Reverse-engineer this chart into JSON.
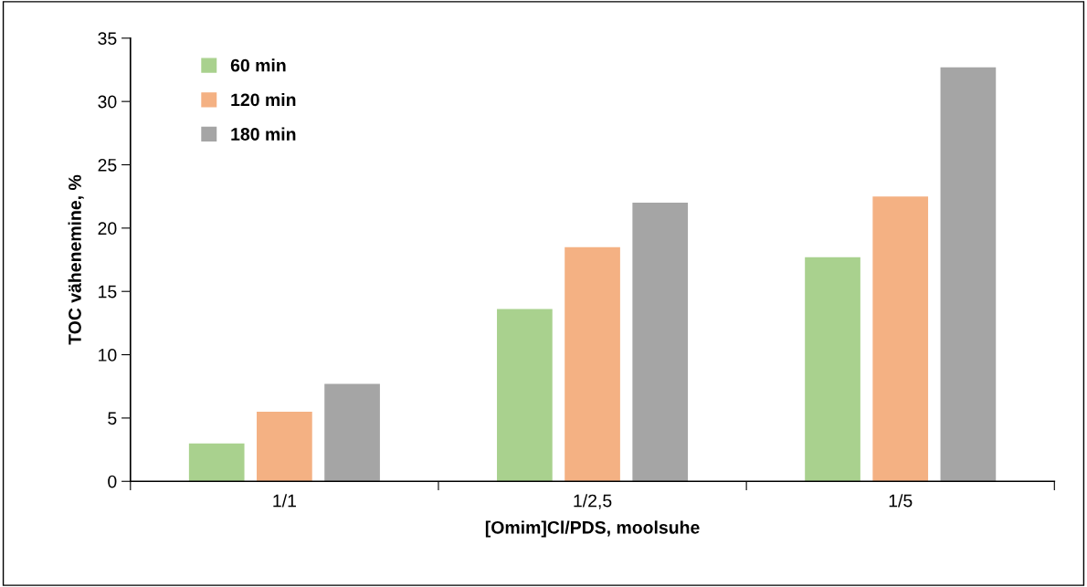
{
  "chart_data": {
    "type": "bar",
    "xlabel": "[Omim]Cl/PDS, moolsuhe",
    "ylabel": "TOC vähenemine, %",
    "categories": [
      "1/1",
      "1/2,5",
      "1/5"
    ],
    "series": [
      {
        "name": "60 min",
        "color": "#a9d18e",
        "values": [
          3.0,
          13.6,
          17.7
        ]
      },
      {
        "name": "120 min",
        "color": "#f4b183",
        "values": [
          5.5,
          18.5,
          22.5
        ]
      },
      {
        "name": "180 min",
        "color": "#a5a5a5",
        "values": [
          7.7,
          22.0,
          32.7
        ]
      }
    ],
    "ylim": [
      0,
      35
    ],
    "yticks": [
      0,
      5,
      10,
      15,
      20,
      25,
      30,
      35
    ],
    "grid": false,
    "legend": "top left"
  }
}
